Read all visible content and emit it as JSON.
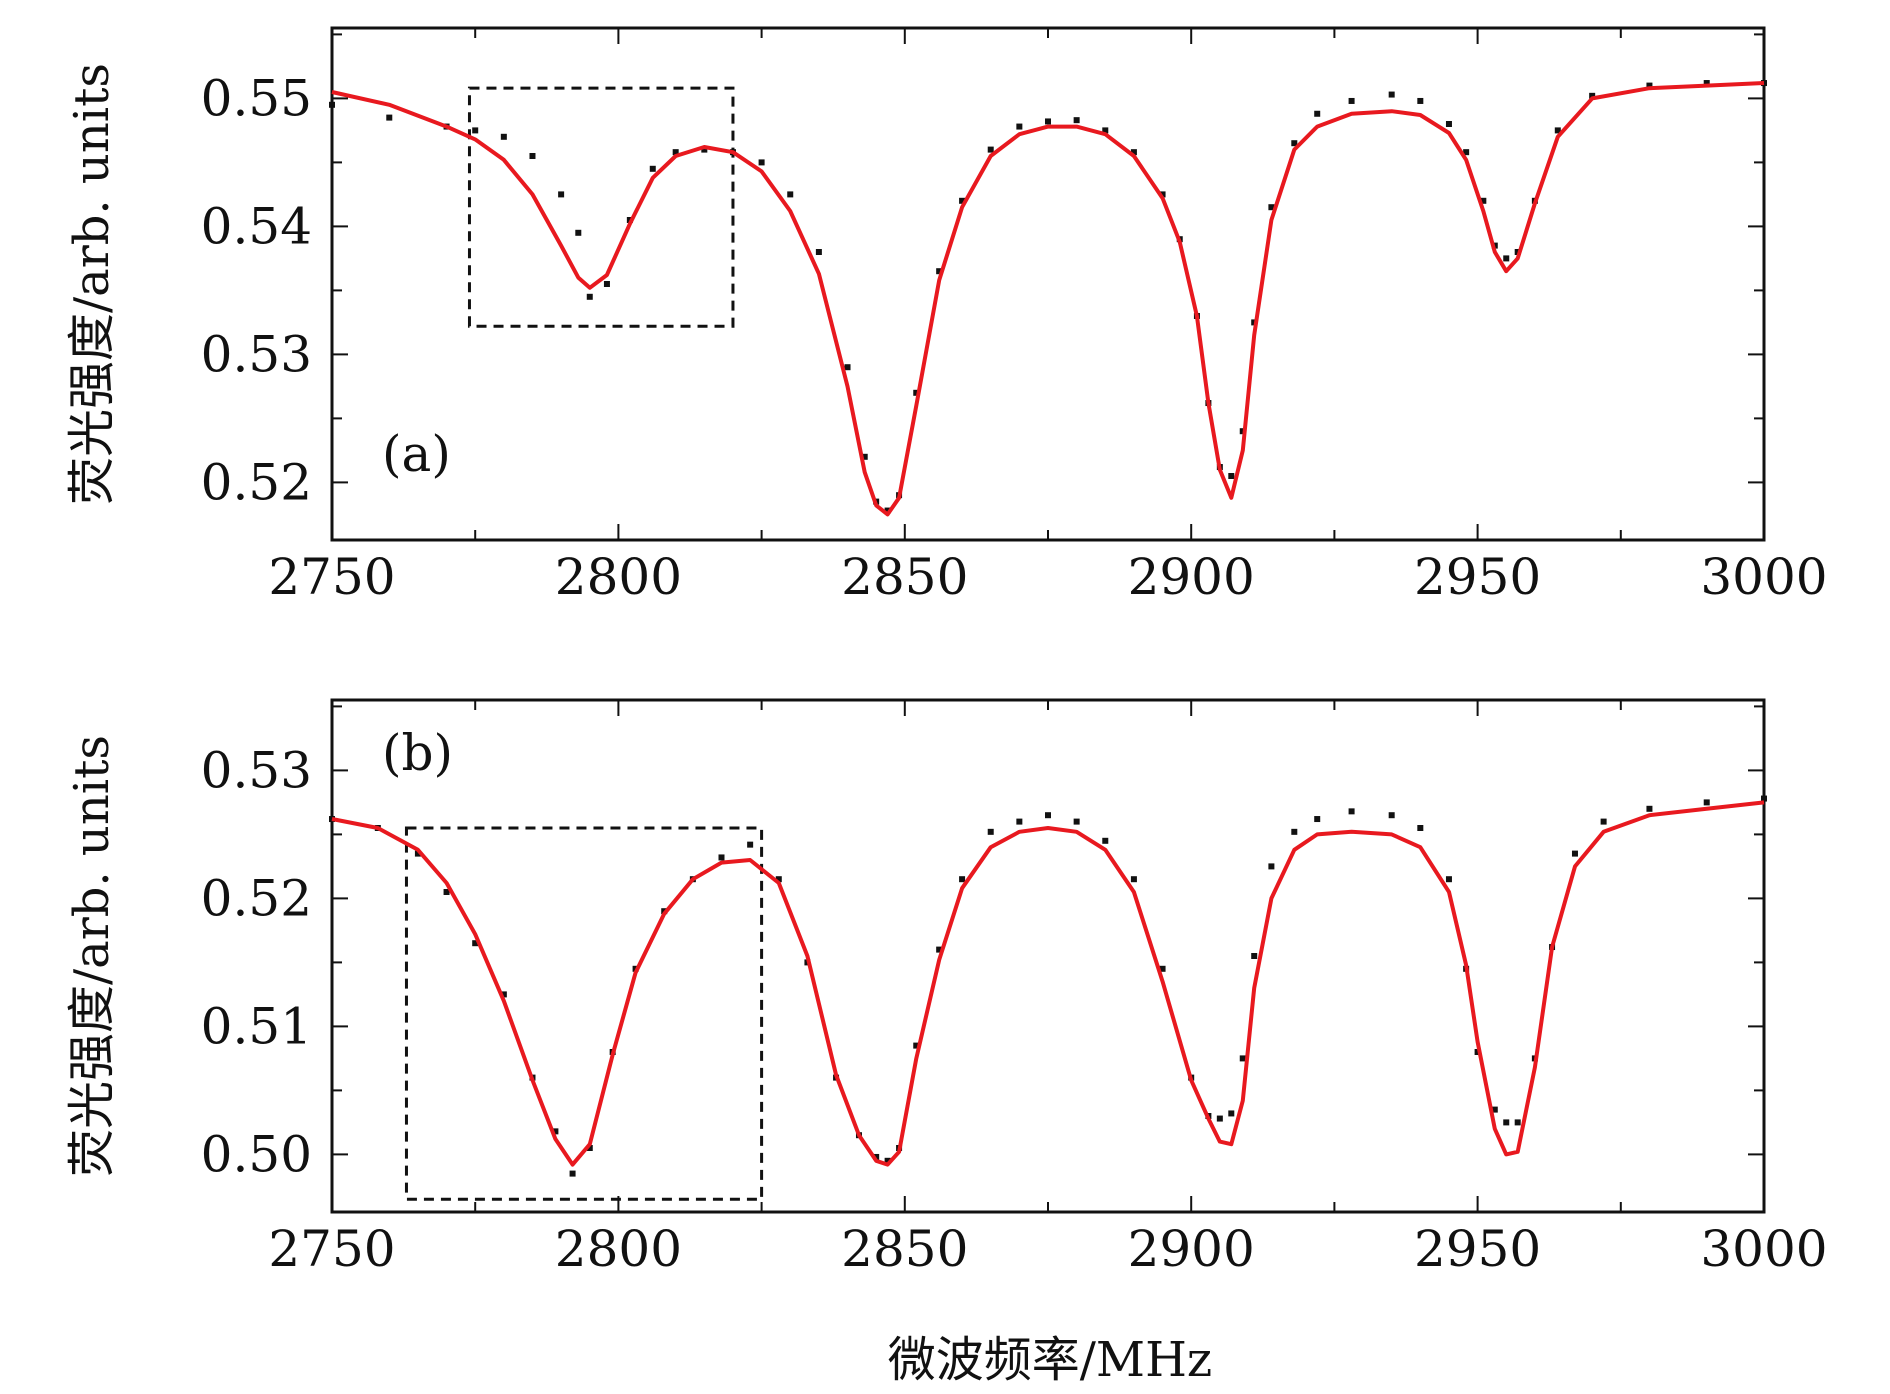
{
  "chart_data": [
    {
      "type": "scatter",
      "panel_label": "(a)",
      "ylabel": "荧光强度/arb. units",
      "xlabel": "",
      "xlim": [
        2750,
        3000
      ],
      "ylim": [
        0.5155,
        0.5555
      ],
      "xticks": [
        "2750",
        "2800",
        "2850",
        "2900",
        "2950",
        "3000"
      ],
      "yticks": [
        "0.52",
        "0.53",
        "0.54",
        "0.55"
      ],
      "series": [
        {
          "kind": "measured",
          "color": "#111111",
          "x": [
            2750,
            2760,
            2770,
            2775,
            2780,
            2785,
            2790,
            2793,
            2795,
            2798,
            2802,
            2806,
            2810,
            2815,
            2820,
            2825,
            2830,
            2835,
            2840,
            2843,
            2845,
            2847,
            2849,
            2852,
            2856,
            2860,
            2865,
            2870,
            2875,
            2880,
            2885,
            2890,
            2895,
            2898,
            2901,
            2903,
            2905,
            2907,
            2909,
            2911,
            2914,
            2918,
            2922,
            2928,
            2935,
            2940,
            2945,
            2948,
            2951,
            2953,
            2955,
            2957,
            2960,
            2964,
            2970,
            2980,
            2990,
            3000
          ],
          "y": [
            0.5495,
            0.5485,
            0.5478,
            0.5475,
            0.547,
            0.5455,
            0.5425,
            0.5395,
            0.5345,
            0.5355,
            0.5405,
            0.5445,
            0.5458,
            0.546,
            0.5458,
            0.545,
            0.5425,
            0.538,
            0.529,
            0.522,
            0.5185,
            0.5178,
            0.519,
            0.527,
            0.5365,
            0.542,
            0.546,
            0.5478,
            0.5482,
            0.5483,
            0.5475,
            0.5458,
            0.5425,
            0.539,
            0.533,
            0.5262,
            0.5212,
            0.5205,
            0.524,
            0.5325,
            0.5415,
            0.5465,
            0.5488,
            0.5498,
            0.5503,
            0.5498,
            0.548,
            0.5458,
            0.542,
            0.5385,
            0.5375,
            0.538,
            0.542,
            0.5475,
            0.5502,
            0.551,
            0.5512,
            0.5512
          ]
        },
        {
          "kind": "fit",
          "color": "#e8191f",
          "x": [
            2750,
            2760,
            2770,
            2775,
            2780,
            2785,
            2790,
            2793,
            2795,
            2798,
            2802,
            2806,
            2810,
            2815,
            2820,
            2825,
            2830,
            2835,
            2840,
            2843,
            2845,
            2847,
            2849,
            2852,
            2856,
            2860,
            2865,
            2870,
            2875,
            2880,
            2885,
            2890,
            2895,
            2898,
            2901,
            2903,
            2905,
            2907,
            2909,
            2911,
            2914,
            2918,
            2922,
            2928,
            2935,
            2940,
            2945,
            2948,
            2951,
            2953,
            2955,
            2957,
            2960,
            2964,
            2970,
            2980,
            2990,
            3000
          ],
          "y": [
            0.5505,
            0.5495,
            0.5478,
            0.5468,
            0.5452,
            0.5425,
            0.5385,
            0.536,
            0.5352,
            0.5362,
            0.5402,
            0.5438,
            0.5455,
            0.5462,
            0.5458,
            0.5443,
            0.5412,
            0.5363,
            0.5275,
            0.5208,
            0.5182,
            0.5175,
            0.5188,
            0.526,
            0.5358,
            0.5415,
            0.5455,
            0.5472,
            0.5478,
            0.5478,
            0.5472,
            0.5455,
            0.5422,
            0.5388,
            0.533,
            0.5262,
            0.521,
            0.5188,
            0.5225,
            0.5315,
            0.5405,
            0.546,
            0.5478,
            0.5488,
            0.549,
            0.5487,
            0.5473,
            0.5452,
            0.5412,
            0.538,
            0.5365,
            0.5375,
            0.5418,
            0.547,
            0.55,
            0.5508,
            0.551,
            0.5512
          ]
        }
      ],
      "annotation_box": {
        "x": [
          2774,
          2820
        ],
        "y": [
          0.5322,
          0.5508
        ]
      }
    },
    {
      "type": "scatter",
      "panel_label": "(b)",
      "ylabel": "荧光强度/arb. units",
      "xlabel": "微波频率/MHz",
      "xlim": [
        2750,
        3000
      ],
      "ylim": [
        0.4955,
        0.5355
      ],
      "xticks": [
        "2750",
        "2800",
        "2850",
        "2900",
        "2950",
        "3000"
      ],
      "yticks": [
        "0.50",
        "0.51",
        "0.52",
        "0.53"
      ],
      "series": [
        {
          "kind": "measured",
          "color": "#111111",
          "x": [
            2750,
            2758,
            2765,
            2770,
            2775,
            2780,
            2785,
            2789,
            2792,
            2795,
            2799,
            2803,
            2808,
            2813,
            2818,
            2823,
            2828,
            2833,
            2838,
            2842,
            2845,
            2847,
            2849,
            2852,
            2856,
            2860,
            2865,
            2870,
            2875,
            2880,
            2885,
            2890,
            2895,
            2900,
            2903,
            2905,
            2907,
            2909,
            2911,
            2914,
            2918,
            2922,
            2928,
            2935,
            2940,
            2945,
            2948,
            2950,
            2953,
            2955,
            2957,
            2960,
            2963,
            2967,
            2972,
            2980,
            2990,
            3000
          ],
          "y": [
            0.5262,
            0.5255,
            0.5235,
            0.5205,
            0.5165,
            0.5125,
            0.506,
            0.5018,
            0.4985,
            0.5005,
            0.508,
            0.5145,
            0.519,
            0.5215,
            0.5232,
            0.5242,
            0.5215,
            0.515,
            0.506,
            0.5015,
            0.4998,
            0.4995,
            0.5005,
            0.5085,
            0.516,
            0.5215,
            0.5252,
            0.526,
            0.5265,
            0.526,
            0.5245,
            0.5215,
            0.5145,
            0.506,
            0.503,
            0.5028,
            0.5032,
            0.5075,
            0.5155,
            0.5225,
            0.5252,
            0.5262,
            0.5268,
            0.5265,
            0.5255,
            0.5215,
            0.5145,
            0.508,
            0.5035,
            0.5025,
            0.5025,
            0.5075,
            0.5162,
            0.5235,
            0.526,
            0.527,
            0.5275,
            0.5278
          ]
        },
        {
          "kind": "fit",
          "color": "#e8191f",
          "x": [
            2750,
            2758,
            2765,
            2770,
            2775,
            2780,
            2785,
            2789,
            2792,
            2795,
            2799,
            2803,
            2808,
            2813,
            2818,
            2823,
            2828,
            2833,
            2838,
            2842,
            2845,
            2847,
            2849,
            2852,
            2856,
            2860,
            2865,
            2870,
            2875,
            2880,
            2885,
            2890,
            2895,
            2900,
            2903,
            2905,
            2907,
            2909,
            2911,
            2914,
            2918,
            2922,
            2928,
            2935,
            2940,
            2945,
            2948,
            2950,
            2953,
            2955,
            2957,
            2960,
            2963,
            2967,
            2972,
            2980,
            2990,
            3000
          ],
          "y": [
            0.5262,
            0.5255,
            0.5238,
            0.5212,
            0.5172,
            0.512,
            0.5058,
            0.5012,
            0.4992,
            0.5008,
            0.5078,
            0.5142,
            0.5188,
            0.5215,
            0.5228,
            0.523,
            0.5212,
            0.5155,
            0.5062,
            0.5015,
            0.4995,
            0.4992,
            0.5002,
            0.5075,
            0.5152,
            0.5208,
            0.524,
            0.5252,
            0.5255,
            0.5252,
            0.5238,
            0.5205,
            0.5135,
            0.5058,
            0.5028,
            0.501,
            0.5008,
            0.5042,
            0.513,
            0.52,
            0.5238,
            0.525,
            0.5252,
            0.525,
            0.524,
            0.5205,
            0.5148,
            0.5088,
            0.502,
            0.5,
            0.5002,
            0.5068,
            0.5162,
            0.5225,
            0.5252,
            0.5265,
            0.527,
            0.5275
          ]
        }
      ],
      "annotation_box": {
        "x": [
          2763,
          2825
        ],
        "y": [
          0.4965,
          0.5255
        ]
      }
    }
  ]
}
